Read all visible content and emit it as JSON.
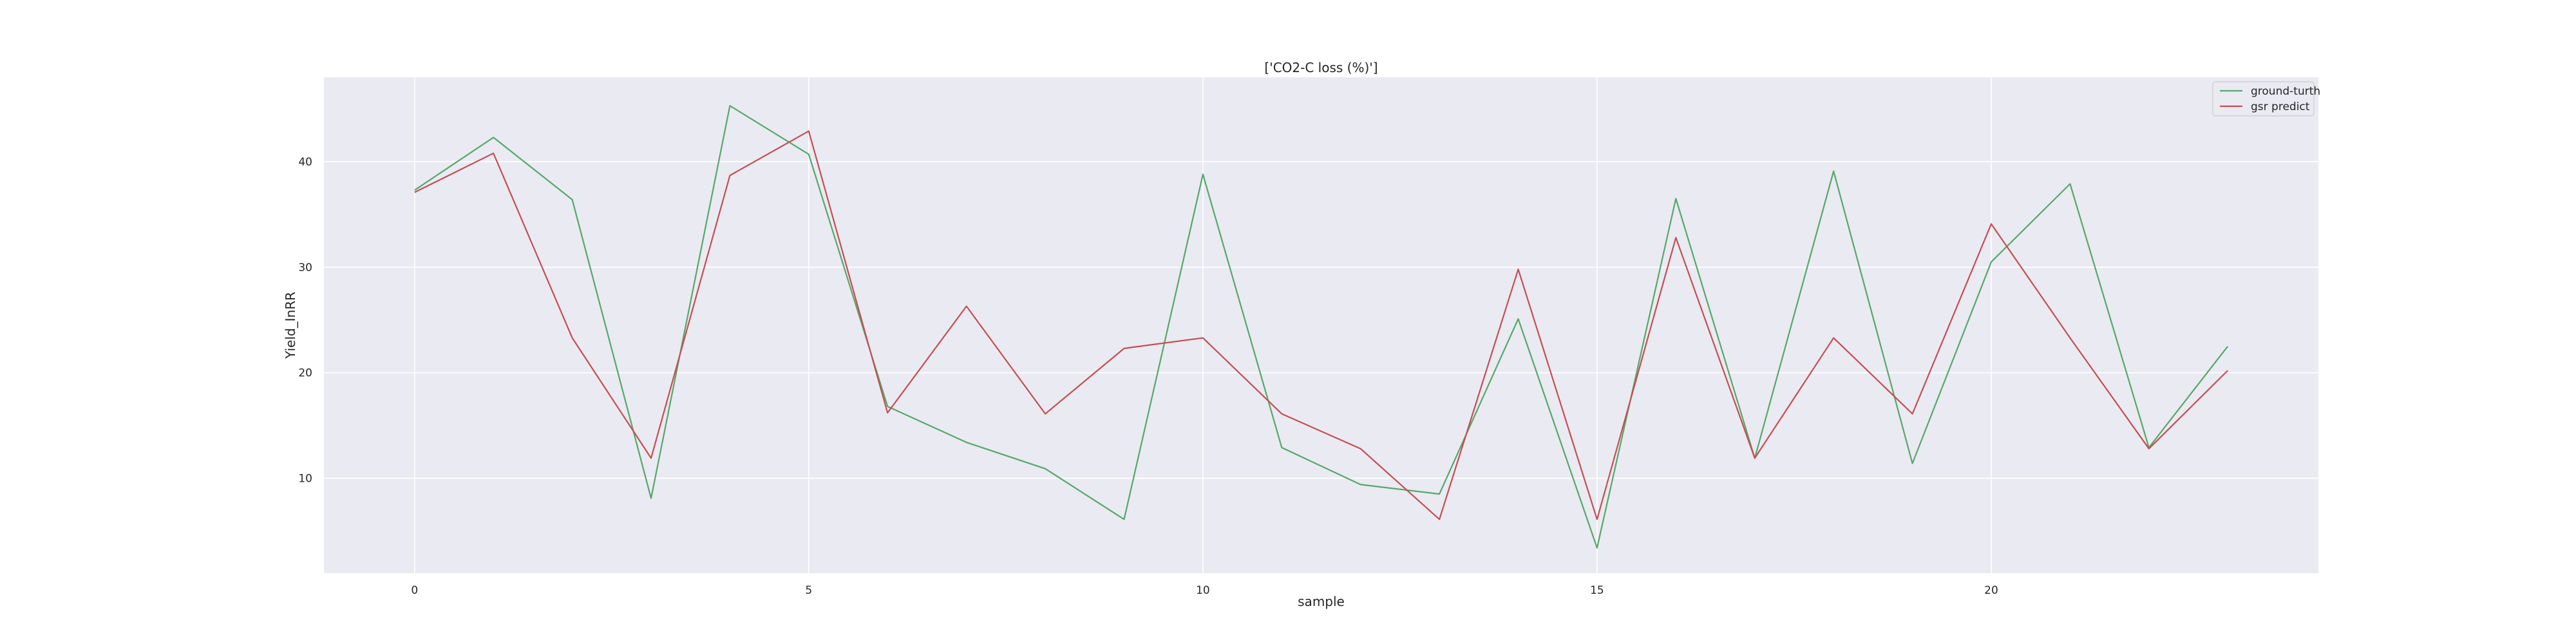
{
  "chart_data": {
    "type": "line",
    "title": "['CO2-C loss (%)']",
    "xlabel": "sample",
    "ylabel": "Yield_InRR",
    "xlim": [
      -1.15,
      24.15
    ],
    "ylim": [
      1.0,
      48.0
    ],
    "xticks": [
      0,
      5,
      10,
      15,
      20
    ],
    "yticks": [
      10,
      20,
      30,
      40
    ],
    "grid": true,
    "legend_position": "top-right",
    "background_color": "#eaeaf2",
    "x": [
      0,
      1,
      2,
      3,
      4,
      5,
      6,
      7,
      8,
      9,
      10,
      11,
      12,
      13,
      14,
      15,
      16,
      17,
      18,
      19,
      20,
      21,
      22,
      23
    ],
    "series": [
      {
        "name": "ground-turth",
        "color": "#55a868",
        "values": [
          37.3,
          42.3,
          36.4,
          8.1,
          45.3,
          40.7,
          16.8,
          13.4,
          10.9,
          6.1,
          38.8,
          12.9,
          9.4,
          8.5,
          25.1,
          3.4,
          36.5,
          11.9,
          39.1,
          11.4,
          30.5,
          37.9,
          12.9,
          22.5
        ]
      },
      {
        "name": "gsr predict",
        "color": "#c44e52",
        "values": [
          37.1,
          40.8,
          23.3,
          11.9,
          38.7,
          42.9,
          16.2,
          26.3,
          16.1,
          22.3,
          23.3,
          16.1,
          12.8,
          6.1,
          29.8,
          6.1,
          32.8,
          11.9,
          23.3,
          16.1,
          34.1,
          23.3,
          12.8,
          20.2
        ]
      }
    ]
  }
}
